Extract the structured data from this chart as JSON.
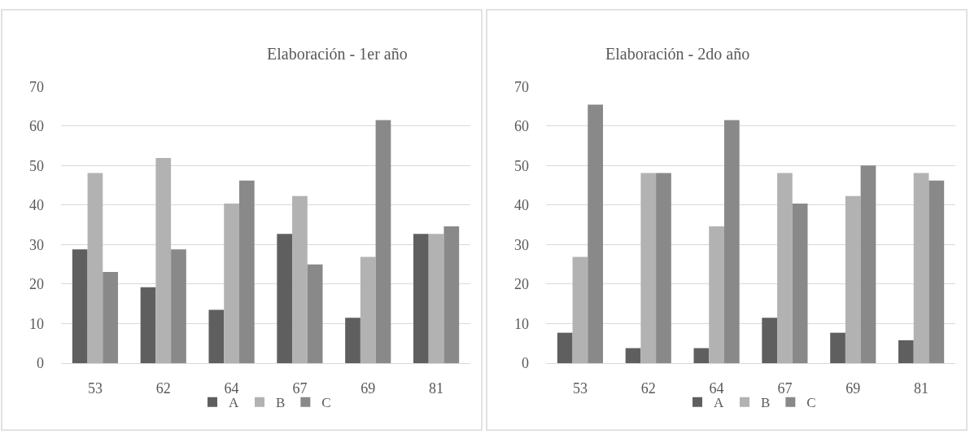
{
  "chart_data": [
    {
      "type": "bar",
      "title": "Elaboración - 1er año",
      "categories": [
        "53",
        "62",
        "64",
        "67",
        "69",
        "81"
      ],
      "series": [
        {
          "name": "A",
          "color": "#5f5f5f",
          "values": [
            28.8,
            19.2,
            13.5,
            32.7,
            11.5,
            32.7
          ]
        },
        {
          "name": "B",
          "color": "#b2b2b2",
          "values": [
            48.1,
            51.9,
            40.4,
            42.3,
            26.9,
            32.7
          ]
        },
        {
          "name": "C",
          "color": "#898989",
          "values": [
            23.1,
            28.8,
            46.2,
            25,
            61.5,
            34.6
          ]
        }
      ],
      "ylim": [
        0,
        70
      ],
      "yticks": [
        0,
        10,
        20,
        30,
        40,
        50,
        60,
        70
      ],
      "grid": "y",
      "legend": "bottom"
    },
    {
      "type": "bar",
      "title": "Elaboración - 2do año",
      "categories": [
        "53",
        "62",
        "64",
        "67",
        "69",
        "81"
      ],
      "series": [
        {
          "name": "A",
          "color": "#5f5f5f",
          "values": [
            7.7,
            3.8,
            3.8,
            11.5,
            7.7,
            5.8
          ]
        },
        {
          "name": "B",
          "color": "#b2b2b2",
          "values": [
            26.9,
            48.1,
            34.6,
            48.1,
            42.3,
            48.1
          ]
        },
        {
          "name": "C",
          "color": "#898989",
          "values": [
            65.4,
            48.1,
            61.5,
            40.4,
            50,
            46.2
          ]
        }
      ],
      "ylim": [
        0,
        70
      ],
      "yticks": [
        0,
        10,
        20,
        30,
        40,
        50,
        60,
        70
      ],
      "grid": "y",
      "legend": "bottom"
    }
  ]
}
